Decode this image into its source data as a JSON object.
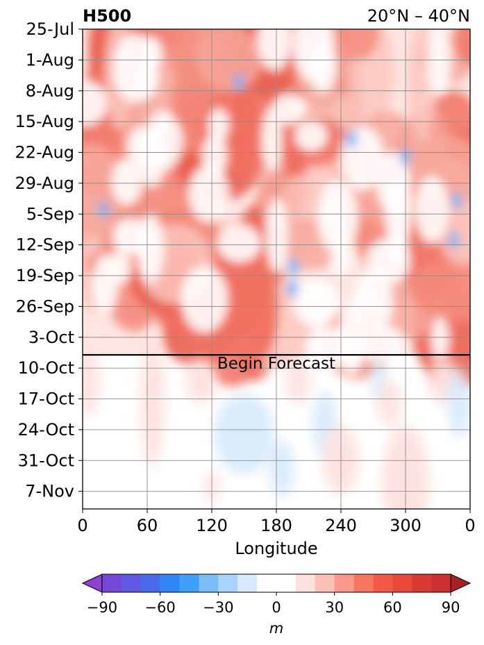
{
  "chart_data": {
    "type": "heatmap",
    "title": "H500",
    "region": "20°N – 40°N",
    "xlabel": "Longitude",
    "ylabel": "",
    "x_ticks": [
      "0",
      "60",
      "120",
      "180",
      "240",
      "300",
      "0"
    ],
    "xlim": [
      0,
      360
    ],
    "y_ticks": [
      "25-Jul",
      "1-Aug",
      "8-Aug",
      "15-Aug",
      "22-Aug",
      "29-Aug",
      "5-Sep",
      "12-Sep",
      "19-Sep",
      "26-Sep",
      "3-Oct",
      "10-Oct",
      "17-Oct",
      "24-Oct",
      "31-Oct",
      "7-Nov"
    ],
    "ylim": [
      "25-Jul",
      "11-Nov"
    ],
    "grid": true,
    "forecast_start": "7-Oct",
    "annotation": "Begin Forecast",
    "colorbar": {
      "label": "m",
      "levels": [
        -100,
        -90,
        -80,
        -70,
        -60,
        -50,
        -40,
        -30,
        -20,
        -10,
        10,
        20,
        30,
        40,
        50,
        60,
        70,
        80,
        90,
        100
      ],
      "tick_labels": [
        "−90",
        "−60",
        "−30",
        "0",
        "30",
        "60",
        "90"
      ],
      "tick_values": [
        -90,
        -60,
        -30,
        0,
        30,
        60,
        90
      ],
      "colors": [
        "#8f3fd3",
        "#6e4fdb",
        "#5a5fe6",
        "#4574ee",
        "#2f86f7",
        "#3fa0f9",
        "#7bbcf9",
        "#a9d3fa",
        "#d8eafb",
        "#ffffff",
        "#ffffff",
        "#fde1de",
        "#fbc0b7",
        "#f99a8c",
        "#f6755f",
        "#f25a45",
        "#e9483a",
        "#db3a33",
        "#cc3030",
        "#b72a2a"
      ],
      "extend": "both"
    },
    "description_fields": {
      "analysis_period": [
        "25-Jul",
        "7-Oct"
      ],
      "forecast_period": [
        "7-Oct",
        "11-Nov"
      ]
    }
  }
}
